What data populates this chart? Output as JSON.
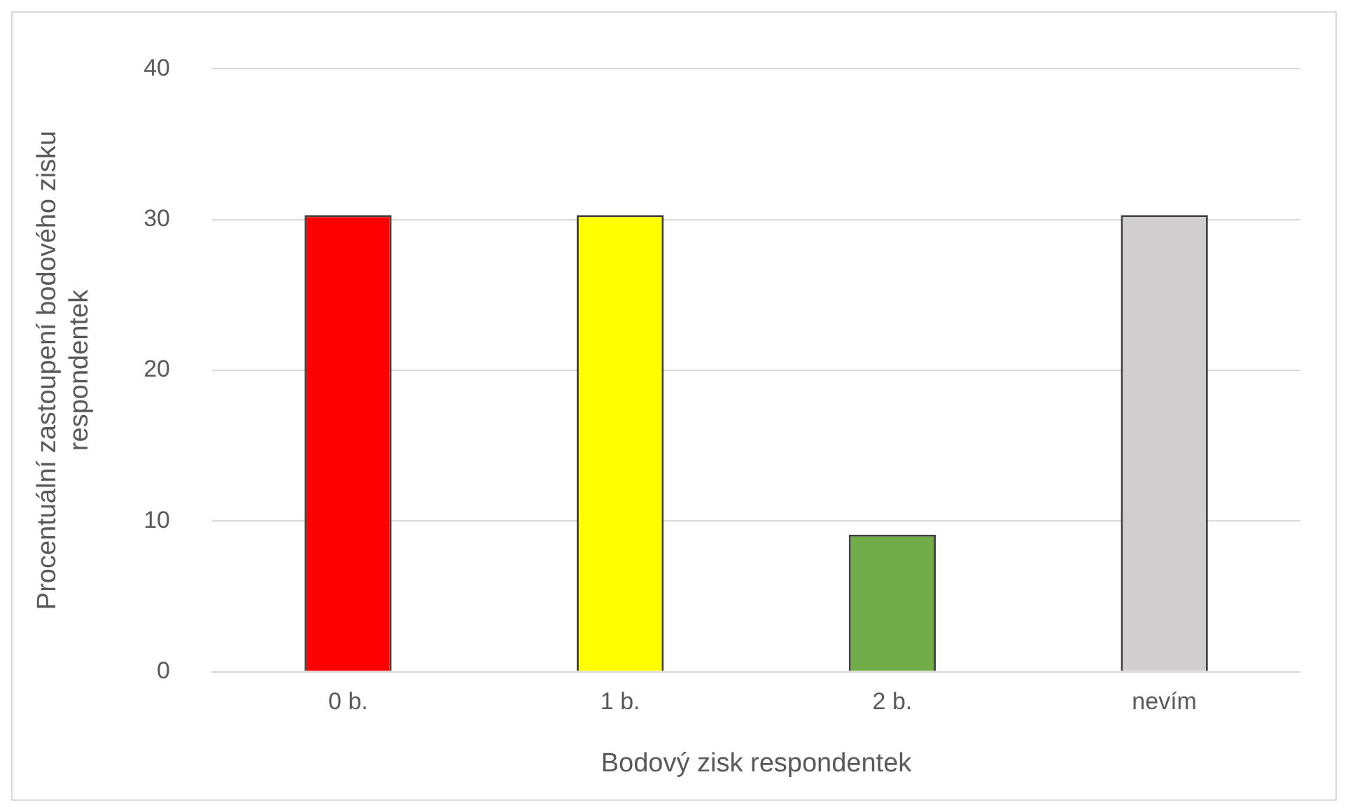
{
  "chart_data": {
    "type": "bar",
    "xlabel": "Bodový zisk respondentek",
    "ylabel": "Procentuální zastoupení bodového zisku respondentek",
    "categories": [
      "0 b.",
      "1 b.",
      "2 b.",
      "nevím"
    ],
    "values": [
      30.3,
      30.3,
      9.1,
      30.3
    ],
    "colors": [
      "#ff0000",
      "#ffff00",
      "#70ad47",
      "#d0cece"
    ],
    "ylim": [
      0,
      40
    ],
    "yticks": [
      0,
      10,
      20,
      30,
      40
    ],
    "grid": "y",
    "legend": false
  }
}
